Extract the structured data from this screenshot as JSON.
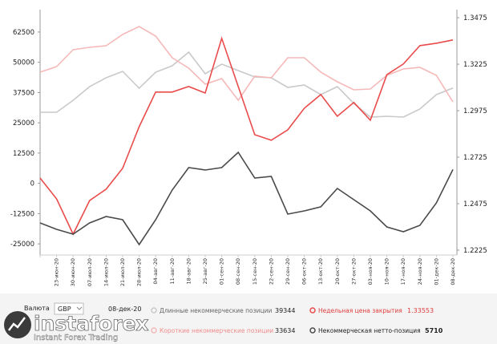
{
  "chart_data": {
    "type": "line",
    "categories": [
      null,
      "23-июн-20",
      "30-июн-20",
      "07-июл-20",
      "14-июл-20",
      "21-июл-20",
      "28-июл-20",
      "04-авг-20",
      "11-авг-20",
      "18-авг-20",
      "25-авг-20",
      "01-сен-20",
      "08-сен-20",
      "15-сен-20",
      "22-сен-20",
      "29-сен-20",
      "06-окт-20",
      "13-окт-20",
      "20-окт-20",
      "27-окт-20",
      "03-ноя-20",
      "10-ноя-20",
      "17-ноя-20",
      "24-ноя-20",
      "01-дек-20",
      "08-дек-20"
    ],
    "ylim": [
      -29600,
      69100
    ],
    "yticks": [
      -25000,
      -12500,
      0,
      12500,
      25000,
      37500,
      50000,
      62500
    ],
    "y2lim": [
      1.2199,
      1.3484
    ],
    "y2ticks": [
      1.2225,
      1.2475,
      1.2725,
      1.2975,
      1.3225,
      1.3475
    ],
    "series": [
      {
        "name": "Длинные некоммерческие позиции",
        "color": "#c9c9c9",
        "values": [
          29350,
          29350,
          34300,
          39950,
          43600,
          46240,
          39300,
          45900,
          48560,
          54200,
          45250,
          49230,
          46580,
          43930,
          43600,
          39620,
          40610,
          36640,
          39950,
          33000,
          27370,
          27700,
          27370,
          30680,
          36640,
          39344
        ]
      },
      {
        "name": "Короткие некоммерческие позиции",
        "color": "#f6b9b9",
        "values": [
          45900,
          48230,
          55190,
          56180,
          56840,
          61480,
          64790,
          60820,
          51880,
          47570,
          40950,
          43260,
          34320,
          44260,
          43600,
          51880,
          51880,
          45900,
          41940,
          38630,
          38960,
          44590,
          47240,
          47900,
          44590,
          33634
        ]
      },
      {
        "name": "Недельная цена закрытия",
        "color": "#ea4b4b",
        "axis": "y2",
        "values": [
          1.2613,
          1.2501,
          1.2311,
          1.2492,
          1.2553,
          1.2665,
          1.2889,
          1.3075,
          1.3075,
          1.3105,
          1.307,
          1.3364,
          1.3105,
          1.2846,
          1.2816,
          1.2872,
          1.2988,
          1.3062,
          1.2945,
          1.3019,
          1.2924,
          1.3169,
          1.3226,
          1.3325,
          1.3338,
          1.33553
        ]
      },
      {
        "name": "Некоммерческая нетто-позиция",
        "color": "#4a4a4a",
        "values": [
          -16350,
          -19000,
          -20990,
          -16350,
          -13700,
          -15030,
          -25300,
          -15030,
          -2770,
          6500,
          5500,
          6500,
          12800,
          2200,
          2860,
          -12700,
          -11400,
          -9700,
          -2100,
          -6750,
          -11400,
          -18000,
          -20000,
          -17350,
          -8070,
          5710
        ]
      }
    ]
  },
  "panel": {
    "currency_label": "Валюта",
    "currency": "GBP",
    "date": "08-дек-20"
  },
  "logo": {
    "name": "instaforex",
    "tagline": "Instant Forex Trading"
  }
}
